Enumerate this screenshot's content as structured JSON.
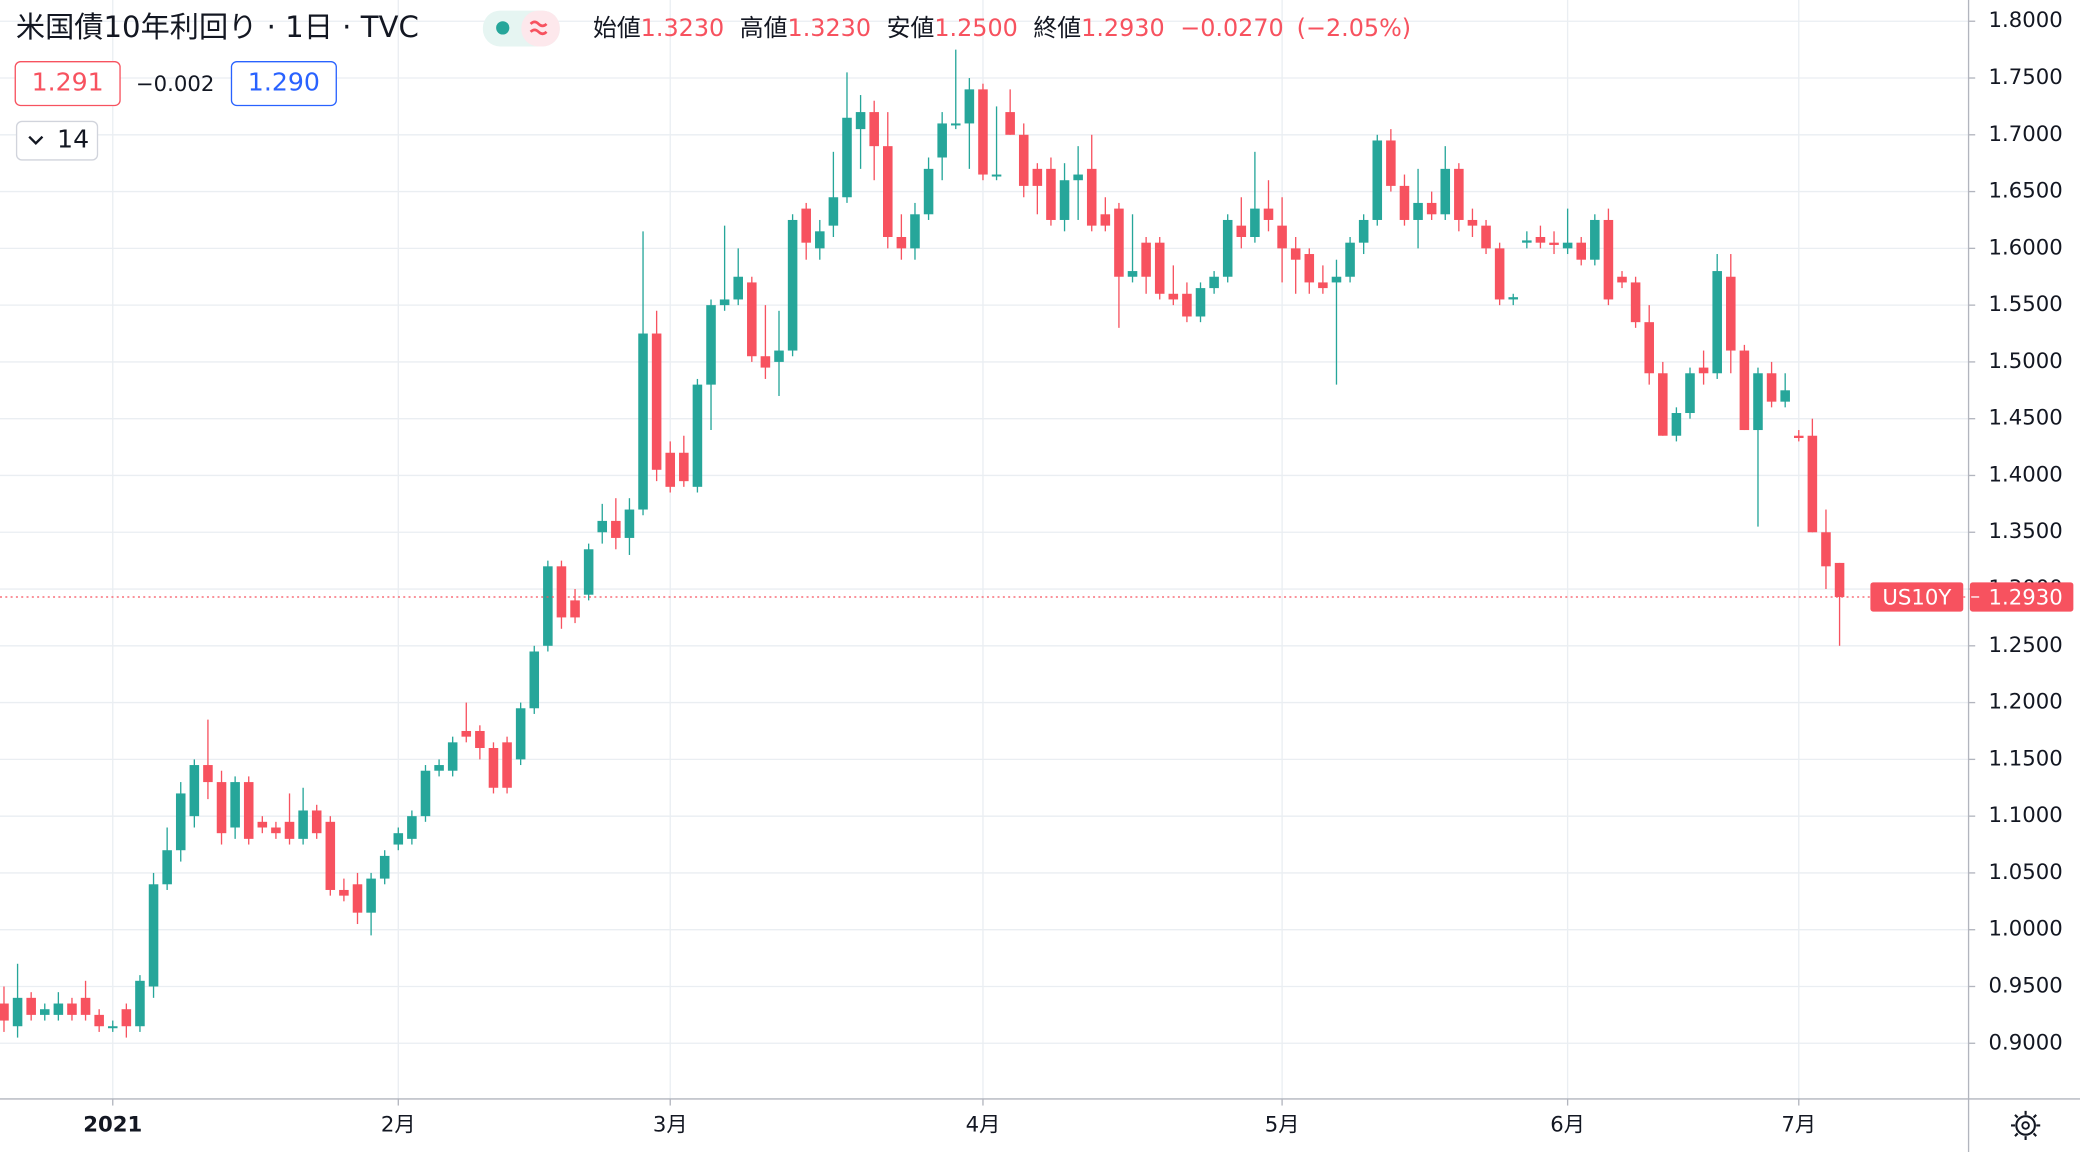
{
  "chart_data": {
    "type": "candlestick",
    "title": "米国債10年利回り · 1日 · TVC",
    "legend": {
      "open_label": "始値",
      "open": "1.3230",
      "high_label": "高値",
      "high": "1.3230",
      "low_label": "安値",
      "low": "1.2500",
      "close_label": "終値",
      "close": "1.2930",
      "change": "−0.0270",
      "change_pct": "(−2.05%)"
    },
    "bid": "1.291",
    "spread": "−0.002",
    "ask": "1.290",
    "indicator_count": "14",
    "last_name": "US10Y",
    "last_label": "1.2930",
    "up_color": "#26a69a",
    "down_color": "#f7525f",
    "categories": [
      null,
      null,
      null,
      null,
      null,
      null,
      null,
      null,
      "2021",
      null,
      null,
      null,
      null,
      null,
      null,
      null,
      null,
      null,
      null,
      null,
      null,
      null,
      null,
      null,
      null,
      null,
      null,
      null,
      null,
      "2月",
      null,
      null,
      null,
      null,
      null,
      null,
      null,
      null,
      null,
      null,
      null,
      null,
      null,
      null,
      null,
      null,
      null,
      null,
      null,
      "3月",
      null,
      null,
      null,
      null,
      null,
      null,
      null,
      null,
      null,
      null,
      null,
      null,
      null,
      null,
      null,
      null,
      null,
      null,
      null,
      null,
      null,
      null,
      "4月",
      null,
      null,
      null,
      null,
      null,
      null,
      null,
      null,
      null,
      null,
      null,
      null,
      null,
      null,
      null,
      null,
      null,
      null,
      null,
      null,
      null,
      "5月",
      null,
      null,
      null,
      null,
      null,
      null,
      null,
      null,
      null,
      null,
      null,
      null,
      null,
      null,
      null,
      null,
      null,
      null,
      null,
      null,
      "6月",
      null,
      null,
      null,
      null,
      null,
      null,
      null,
      null,
      null,
      null,
      null,
      null,
      null,
      null,
      null,
      null,
      "7月",
      null,
      null,
      null
    ],
    "open": [
      0.935,
      0.915,
      0.94,
      0.925,
      0.925,
      0.935,
      0.94,
      0.925,
      0.915,
      0.93,
      0.915,
      0.95,
      1.04,
      1.07,
      1.1,
      1.145,
      1.13,
      1.09,
      1.13,
      1.095,
      1.09,
      1.095,
      1.08,
      1.105,
      1.095,
      1.035,
      1.04,
      1.015,
      1.045,
      1.075,
      1.08,
      1.1,
      1.14,
      1.14,
      1.175,
      1.175,
      1.16,
      1.165,
      1.15,
      1.195,
      1.25,
      1.32,
      1.29,
      1.295,
      1.35,
      1.36,
      1.345,
      1.37,
      1.525,
      1.42,
      1.42,
      1.39,
      1.48,
      1.55,
      1.555,
      1.57,
      1.505,
      1.5,
      1.51,
      1.635,
      1.6,
      1.62,
      1.645,
      1.705,
      1.72,
      1.69,
      1.61,
      1.6,
      1.63,
      1.68,
      1.71,
      1.71,
      1.74,
      1.665,
      1.72,
      1.7,
      1.67,
      1.67,
      1.625,
      1.66,
      1.67,
      1.63,
      1.635,
      1.575,
      1.605,
      1.605,
      1.56,
      1.56,
      1.54,
      1.565,
      1.575,
      1.62,
      1.61,
      1.635,
      1.62,
      1.6,
      1.595,
      1.57,
      1.57,
      1.575,
      1.605,
      1.625,
      1.695,
      1.655,
      1.625,
      1.64,
      1.63,
      1.67,
      1.625,
      1.62,
      1.6,
      1.555,
      1.605,
      1.61,
      1.605,
      1.6,
      1.605,
      1.59,
      1.625,
      1.575,
      1.57,
      1.535,
      1.49,
      1.435,
      1.455,
      1.495,
      1.49,
      1.575,
      1.51,
      1.44,
      1.49,
      1.465,
      1.435,
      1.435,
      1.35,
      1.323
    ],
    "high": [
      0.95,
      0.97,
      0.945,
      0.935,
      0.945,
      0.94,
      0.955,
      0.93,
      0.92,
      0.935,
      0.96,
      1.05,
      1.09,
      1.13,
      1.15,
      1.185,
      1.14,
      1.135,
      1.135,
      1.1,
      1.095,
      1.12,
      1.125,
      1.11,
      1.1,
      1.045,
      1.05,
      1.05,
      1.07,
      1.09,
      1.105,
      1.145,
      1.15,
      1.17,
      1.2,
      1.18,
      1.165,
      1.17,
      1.2,
      1.25,
      1.325,
      1.325,
      1.3,
      1.34,
      1.375,
      1.38,
      1.38,
      1.615,
      1.545,
      1.43,
      1.435,
      1.485,
      1.555,
      1.62,
      1.6,
      1.575,
      1.55,
      1.545,
      1.63,
      1.64,
      1.625,
      1.685,
      1.755,
      1.735,
      1.73,
      1.72,
      1.63,
      1.64,
      1.68,
      1.72,
      1.775,
      1.75,
      1.745,
      1.725,
      1.74,
      1.71,
      1.675,
      1.68,
      1.675,
      1.69,
      1.7,
      1.645,
      1.64,
      1.63,
      1.61,
      1.61,
      1.585,
      1.57,
      1.57,
      1.58,
      1.63,
      1.645,
      1.685,
      1.66,
      1.645,
      1.61,
      1.6,
      1.585,
      1.59,
      1.61,
      1.63,
      1.7,
      1.705,
      1.665,
      1.67,
      1.65,
      1.69,
      1.675,
      1.635,
      1.625,
      1.605,
      1.56,
      1.615,
      1.62,
      1.615,
      1.635,
      1.61,
      1.63,
      1.635,
      1.58,
      1.575,
      1.55,
      1.5,
      1.46,
      1.495,
      1.51,
      1.595,
      1.595,
      1.515,
      1.495,
      1.5,
      1.49,
      1.44,
      1.45,
      1.37,
      1.323
    ],
    "low": [
      0.91,
      0.905,
      0.92,
      0.92,
      0.92,
      0.92,
      0.92,
      0.91,
      0.91,
      0.905,
      0.91,
      0.94,
      1.035,
      1.06,
      1.09,
      1.115,
      1.075,
      1.08,
      1.075,
      1.085,
      1.08,
      1.075,
      1.075,
      1.08,
      1.03,
      1.025,
      1.005,
      0.995,
      1.04,
      1.07,
      1.075,
      1.095,
      1.135,
      1.135,
      1.165,
      1.15,
      1.12,
      1.12,
      1.145,
      1.19,
      1.245,
      1.265,
      1.27,
      1.29,
      1.34,
      1.335,
      1.33,
      1.365,
      1.395,
      1.385,
      1.39,
      1.385,
      1.44,
      1.545,
      1.55,
      1.5,
      1.485,
      1.47,
      1.505,
      1.59,
      1.59,
      1.61,
      1.64,
      1.67,
      1.66,
      1.6,
      1.59,
      1.59,
      1.625,
      1.66,
      1.705,
      1.67,
      1.66,
      1.66,
      1.7,
      1.645,
      1.63,
      1.62,
      1.615,
      1.625,
      1.615,
      1.615,
      1.53,
      1.57,
      1.56,
      1.555,
      1.55,
      1.535,
      1.535,
      1.56,
      1.57,
      1.6,
      1.605,
      1.615,
      1.57,
      1.56,
      1.56,
      1.56,
      1.48,
      1.57,
      1.595,
      1.62,
      1.65,
      1.62,
      1.6,
      1.625,
      1.625,
      1.615,
      1.61,
      1.595,
      1.55,
      1.55,
      1.6,
      1.6,
      1.595,
      1.595,
      1.585,
      1.585,
      1.55,
      1.565,
      1.53,
      1.48,
      1.435,
      1.43,
      1.45,
      1.48,
      1.485,
      1.49,
      1.44,
      1.355,
      1.46,
      1.46,
      1.43,
      1.35,
      1.3,
      1.25
    ],
    "close": [
      0.92,
      0.94,
      0.925,
      0.93,
      0.935,
      0.925,
      0.925,
      0.915,
      0.915,
      0.915,
      0.955,
      1.04,
      1.07,
      1.12,
      1.145,
      1.13,
      1.085,
      1.13,
      1.08,
      1.09,
      1.085,
      1.08,
      1.105,
      1.085,
      1.035,
      1.03,
      1.015,
      1.045,
      1.065,
      1.085,
      1.1,
      1.14,
      1.145,
      1.165,
      1.17,
      1.16,
      1.125,
      1.125,
      1.195,
      1.245,
      1.32,
      1.275,
      1.275,
      1.335,
      1.36,
      1.345,
      1.37,
      1.525,
      1.405,
      1.39,
      1.395,
      1.48,
      1.55,
      1.555,
      1.575,
      1.505,
      1.495,
      1.51,
      1.625,
      1.605,
      1.615,
      1.645,
      1.715,
      1.72,
      1.69,
      1.61,
      1.6,
      1.63,
      1.67,
      1.71,
      1.71,
      1.74,
      1.665,
      1.665,
      1.7,
      1.655,
      1.655,
      1.625,
      1.66,
      1.665,
      1.62,
      1.62,
      1.575,
      1.58,
      1.575,
      1.56,
      1.555,
      1.54,
      1.565,
      1.575,
      1.625,
      1.61,
      1.635,
      1.625,
      1.6,
      1.59,
      1.57,
      1.565,
      1.575,
      1.605,
      1.625,
      1.695,
      1.655,
      1.625,
      1.64,
      1.63,
      1.67,
      1.625,
      1.62,
      1.6,
      1.555,
      1.557,
      1.607,
      1.605,
      1.603,
      1.605,
      1.59,
      1.625,
      1.555,
      1.57,
      1.535,
      1.49,
      1.435,
      1.455,
      1.49,
      1.49,
      1.58,
      1.51,
      1.44,
      1.49,
      1.465,
      1.475,
      1.433,
      1.35,
      1.32,
      1.293
    ],
    "ylim": [
      0.851,
      1.8187
    ],
    "yticks": [
      {
        "value": 0.9,
        "label": "0.9000"
      },
      {
        "value": 0.95,
        "label": "0.9500"
      },
      {
        "value": 1.0,
        "label": "1.0000"
      },
      {
        "value": 1.05,
        "label": "1.0500"
      },
      {
        "value": 1.1,
        "label": "1.1000"
      },
      {
        "value": 1.15,
        "label": "1.1500"
      },
      {
        "value": 1.2,
        "label": "1.2000"
      },
      {
        "value": 1.25,
        "label": "1.2500"
      },
      {
        "value": 1.3,
        "label": "1.3000"
      },
      {
        "value": 1.35,
        "label": "1.3500"
      },
      {
        "value": 1.4,
        "label": "1.4000"
      },
      {
        "value": 1.45,
        "label": "1.4500"
      },
      {
        "value": 1.5,
        "label": "1.5000"
      },
      {
        "value": 1.55,
        "label": "1.5500"
      },
      {
        "value": 1.6,
        "label": "1.6000"
      },
      {
        "value": 1.65,
        "label": "1.6500"
      },
      {
        "value": 1.7,
        "label": "1.7000"
      },
      {
        "value": 1.75,
        "label": "1.7500"
      },
      {
        "value": 1.8,
        "label": "1.8000"
      }
    ],
    "grid": true
  }
}
